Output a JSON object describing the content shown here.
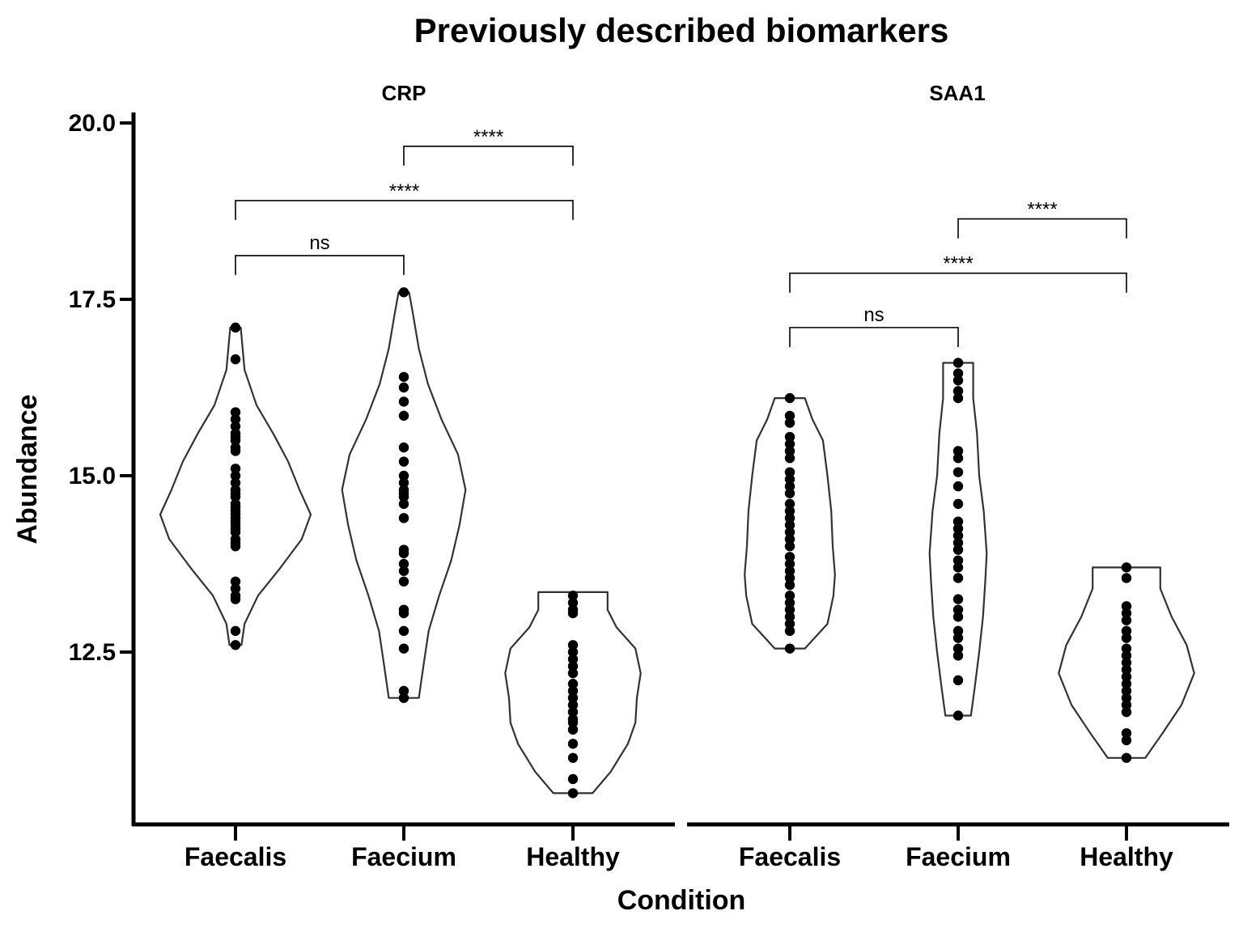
{
  "chart_data": {
    "type": "violin",
    "title": "Previously described biomarkers",
    "xlabel": "Condition",
    "ylabel": "Abundance",
    "ylim": [
      10.15,
      20.2
    ],
    "yticks": [
      "12.5",
      "15.0",
      "17.5",
      "20.0"
    ],
    "categories": [
      "Faecalis",
      "Faecium",
      "Healthy"
    ],
    "panels": [
      {
        "name": "CRP",
        "groups": [
          {
            "category": "Faecalis",
            "min": 12.6,
            "max": 17.1,
            "density": [
              [
                12.6,
                0.08
              ],
              [
                12.9,
                0.12
              ],
              [
                13.3,
                0.3
              ],
              [
                13.7,
                0.6
              ],
              [
                14.1,
                0.88
              ],
              [
                14.45,
                1.0
              ],
              [
                14.8,
                0.85
              ],
              [
                15.2,
                0.7
              ],
              [
                15.6,
                0.5
              ],
              [
                16.0,
                0.28
              ],
              [
                16.5,
                0.12
              ],
              [
                17.1,
                0.07
              ]
            ],
            "points": [
              12.6,
              12.8,
              13.25,
              13.3,
              13.4,
              13.5,
              14.0,
              14.05,
              14.1,
              14.2,
              14.25,
              14.3,
              14.35,
              14.4,
              14.45,
              14.5,
              14.55,
              14.6,
              14.7,
              14.75,
              14.8,
              14.9,
              15.0,
              15.1,
              15.35,
              15.4,
              15.5,
              15.55,
              15.6,
              15.7,
              15.8,
              15.9,
              16.65,
              17.1
            ]
          },
          {
            "category": "Faecium",
            "min": 11.85,
            "max": 17.6,
            "density": [
              [
                11.85,
                0.2
              ],
              [
                12.3,
                0.26
              ],
              [
                12.8,
                0.33
              ],
              [
                13.3,
                0.47
              ],
              [
                13.8,
                0.63
              ],
              [
                14.3,
                0.74
              ],
              [
                14.8,
                0.82
              ],
              [
                15.3,
                0.72
              ],
              [
                15.8,
                0.5
              ],
              [
                16.3,
                0.32
              ],
              [
                16.8,
                0.2
              ],
              [
                17.3,
                0.12
              ],
              [
                17.6,
                0.07
              ]
            ],
            "points": [
              11.85,
              11.95,
              12.55,
              12.8,
              13.05,
              13.1,
              13.5,
              13.65,
              13.75,
              13.9,
              13.95,
              14.4,
              14.6,
              14.7,
              14.75,
              14.8,
              14.9,
              15.0,
              15.2,
              15.4,
              15.85,
              16.05,
              16.25,
              16.4,
              17.6
            ]
          },
          {
            "category": "Healthy",
            "min": 10.5,
            "max": 13.35,
            "density": [
              [
                10.5,
                0.26
              ],
              [
                10.8,
                0.5
              ],
              [
                11.2,
                0.73
              ],
              [
                11.5,
                0.83
              ],
              [
                11.85,
                0.85
              ],
              [
                12.2,
                0.9
              ],
              [
                12.55,
                0.83
              ],
              [
                12.85,
                0.58
              ],
              [
                13.1,
                0.46
              ],
              [
                13.35,
                0.46
              ]
            ],
            "points": [
              10.5,
              10.7,
              11.0,
              11.2,
              11.4,
              11.5,
              11.55,
              11.65,
              11.75,
              11.85,
              11.95,
              12.05,
              12.2,
              12.3,
              12.4,
              12.5,
              12.6,
              13.05,
              13.1,
              13.2,
              13.3
            ]
          }
        ],
        "comparisons": [
          {
            "from": "Faecalis",
            "to": "Faecium",
            "y": 18.12,
            "label": "ns"
          },
          {
            "from": "Faecalis",
            "to": "Healthy",
            "y": 18.9,
            "label": "****"
          },
          {
            "from": "Faecium",
            "to": "Healthy",
            "y": 19.67,
            "label": "****"
          }
        ]
      },
      {
        "name": "SAA1",
        "groups": [
          {
            "category": "Faecalis",
            "min": 12.55,
            "max": 16.1,
            "density": [
              [
                12.55,
                0.2
              ],
              [
                12.9,
                0.5
              ],
              [
                13.3,
                0.58
              ],
              [
                13.6,
                0.6
              ],
              [
                14.0,
                0.57
              ],
              [
                14.5,
                0.55
              ],
              [
                15.0,
                0.5
              ],
              [
                15.5,
                0.44
              ],
              [
                15.8,
                0.3
              ],
              [
                16.1,
                0.2
              ]
            ],
            "points": [
              12.55,
              12.8,
              12.9,
              13.0,
              13.1,
              13.2,
              13.3,
              13.45,
              13.55,
              13.65,
              13.75,
              13.85,
              14.0,
              14.1,
              14.2,
              14.3,
              14.4,
              14.5,
              14.6,
              14.75,
              14.85,
              14.95,
              15.05,
              15.25,
              15.35,
              15.45,
              15.55,
              15.75,
              15.85,
              16.1
            ]
          },
          {
            "category": "Faecium",
            "min": 11.6,
            "max": 16.6,
            "density": [
              [
                11.6,
                0.17
              ],
              [
                12.0,
                0.22
              ],
              [
                12.5,
                0.28
              ],
              [
                13.0,
                0.33
              ],
              [
                13.5,
                0.36
              ],
              [
                13.9,
                0.38
              ],
              [
                14.5,
                0.34
              ],
              [
                15.0,
                0.28
              ],
              [
                15.6,
                0.25
              ],
              [
                16.1,
                0.2
              ],
              [
                16.6,
                0.2
              ]
            ],
            "points": [
              11.6,
              12.1,
              12.45,
              12.55,
              12.7,
              12.8,
              13.0,
              13.1,
              13.25,
              13.55,
              13.7,
              13.8,
              13.95,
              14.05,
              14.15,
              14.25,
              14.35,
              14.6,
              14.85,
              15.05,
              15.25,
              15.35,
              16.1,
              16.2,
              16.35,
              16.45,
              16.6
            ]
          },
          {
            "category": "Healthy",
            "min": 11.0,
            "max": 13.7,
            "density": [
              [
                11.0,
                0.25
              ],
              [
                11.35,
                0.48
              ],
              [
                11.75,
                0.73
              ],
              [
                12.2,
                0.9
              ],
              [
                12.6,
                0.8
              ],
              [
                13.0,
                0.6
              ],
              [
                13.4,
                0.45
              ],
              [
                13.7,
                0.45
              ]
            ],
            "points": [
              11.0,
              11.25,
              11.35,
              11.65,
              11.75,
              11.85,
              11.95,
              12.05,
              12.15,
              12.25,
              12.35,
              12.45,
              12.55,
              12.7,
              12.8,
              12.95,
              13.05,
              13.15,
              13.55,
              13.7
            ]
          }
        ],
        "comparisons": [
          {
            "from": "Faecalis",
            "to": "Faecium",
            "y": 17.1,
            "label": "ns"
          },
          {
            "from": "Faecalis",
            "to": "Healthy",
            "y": 17.87,
            "label": "****"
          },
          {
            "from": "Faecium",
            "to": "Healthy",
            "y": 18.64,
            "label": "****"
          }
        ]
      }
    ]
  }
}
